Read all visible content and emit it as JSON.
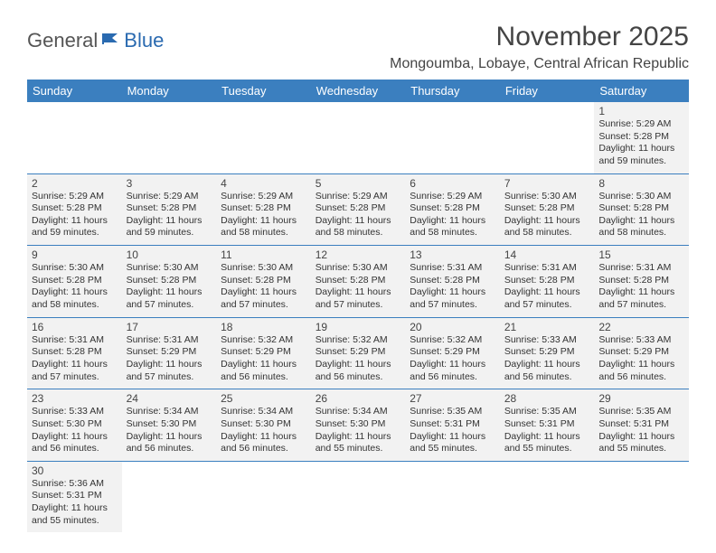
{
  "logo": {
    "part1": "General",
    "part2": "Blue"
  },
  "title": "November 2025",
  "location": "Mongoumba, Lobaye, Central African Republic",
  "colors": {
    "header_bg": "#3b7fbf",
    "header_text": "#ffffff",
    "cell_bg": "#f2f2f2",
    "border": "#3b7fbf",
    "logo_accent": "#2a6ab0"
  },
  "weekdays": [
    "Sunday",
    "Monday",
    "Tuesday",
    "Wednesday",
    "Thursday",
    "Friday",
    "Saturday"
  ],
  "days": [
    {
      "n": 1,
      "sr": "5:29 AM",
      "ss": "5:28 PM",
      "dl": "11 hours and 59 minutes."
    },
    {
      "n": 2,
      "sr": "5:29 AM",
      "ss": "5:28 PM",
      "dl": "11 hours and 59 minutes."
    },
    {
      "n": 3,
      "sr": "5:29 AM",
      "ss": "5:28 PM",
      "dl": "11 hours and 59 minutes."
    },
    {
      "n": 4,
      "sr": "5:29 AM",
      "ss": "5:28 PM",
      "dl": "11 hours and 58 minutes."
    },
    {
      "n": 5,
      "sr": "5:29 AM",
      "ss": "5:28 PM",
      "dl": "11 hours and 58 minutes."
    },
    {
      "n": 6,
      "sr": "5:29 AM",
      "ss": "5:28 PM",
      "dl": "11 hours and 58 minutes."
    },
    {
      "n": 7,
      "sr": "5:30 AM",
      "ss": "5:28 PM",
      "dl": "11 hours and 58 minutes."
    },
    {
      "n": 8,
      "sr": "5:30 AM",
      "ss": "5:28 PM",
      "dl": "11 hours and 58 minutes."
    },
    {
      "n": 9,
      "sr": "5:30 AM",
      "ss": "5:28 PM",
      "dl": "11 hours and 58 minutes."
    },
    {
      "n": 10,
      "sr": "5:30 AM",
      "ss": "5:28 PM",
      "dl": "11 hours and 57 minutes."
    },
    {
      "n": 11,
      "sr": "5:30 AM",
      "ss": "5:28 PM",
      "dl": "11 hours and 57 minutes."
    },
    {
      "n": 12,
      "sr": "5:30 AM",
      "ss": "5:28 PM",
      "dl": "11 hours and 57 minutes."
    },
    {
      "n": 13,
      "sr": "5:31 AM",
      "ss": "5:28 PM",
      "dl": "11 hours and 57 minutes."
    },
    {
      "n": 14,
      "sr": "5:31 AM",
      "ss": "5:28 PM",
      "dl": "11 hours and 57 minutes."
    },
    {
      "n": 15,
      "sr": "5:31 AM",
      "ss": "5:28 PM",
      "dl": "11 hours and 57 minutes."
    },
    {
      "n": 16,
      "sr": "5:31 AM",
      "ss": "5:28 PM",
      "dl": "11 hours and 57 minutes."
    },
    {
      "n": 17,
      "sr": "5:31 AM",
      "ss": "5:29 PM",
      "dl": "11 hours and 57 minutes."
    },
    {
      "n": 18,
      "sr": "5:32 AM",
      "ss": "5:29 PM",
      "dl": "11 hours and 56 minutes."
    },
    {
      "n": 19,
      "sr": "5:32 AM",
      "ss": "5:29 PM",
      "dl": "11 hours and 56 minutes."
    },
    {
      "n": 20,
      "sr": "5:32 AM",
      "ss": "5:29 PM",
      "dl": "11 hours and 56 minutes."
    },
    {
      "n": 21,
      "sr": "5:33 AM",
      "ss": "5:29 PM",
      "dl": "11 hours and 56 minutes."
    },
    {
      "n": 22,
      "sr": "5:33 AM",
      "ss": "5:29 PM",
      "dl": "11 hours and 56 minutes."
    },
    {
      "n": 23,
      "sr": "5:33 AM",
      "ss": "5:30 PM",
      "dl": "11 hours and 56 minutes."
    },
    {
      "n": 24,
      "sr": "5:34 AM",
      "ss": "5:30 PM",
      "dl": "11 hours and 56 minutes."
    },
    {
      "n": 25,
      "sr": "5:34 AM",
      "ss": "5:30 PM",
      "dl": "11 hours and 56 minutes."
    },
    {
      "n": 26,
      "sr": "5:34 AM",
      "ss": "5:30 PM",
      "dl": "11 hours and 55 minutes."
    },
    {
      "n": 27,
      "sr": "5:35 AM",
      "ss": "5:31 PM",
      "dl": "11 hours and 55 minutes."
    },
    {
      "n": 28,
      "sr": "5:35 AM",
      "ss": "5:31 PM",
      "dl": "11 hours and 55 minutes."
    },
    {
      "n": 29,
      "sr": "5:35 AM",
      "ss": "5:31 PM",
      "dl": "11 hours and 55 minutes."
    },
    {
      "n": 30,
      "sr": "5:36 AM",
      "ss": "5:31 PM",
      "dl": "11 hours and 55 minutes."
    }
  ],
  "labels": {
    "sunrise": "Sunrise:",
    "sunset": "Sunset:",
    "daylight": "Daylight:"
  },
  "first_day_column": 6,
  "total_days": 30
}
